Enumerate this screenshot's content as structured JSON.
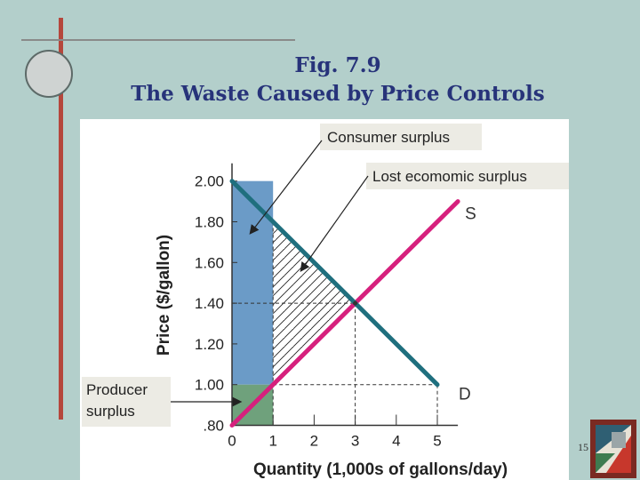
{
  "slide": {
    "title_line1": "Fig. 7.9",
    "title_line2": "The Waste Caused by Price Controls",
    "page_number": "15"
  },
  "chart_data": {
    "type": "line",
    "xlabel": "Quantity (1,000s of gallons/day)",
    "ylabel": "Price ($/gallon)",
    "xlim": [
      0,
      5.5
    ],
    "ylim": [
      0.8,
      2.0
    ],
    "x_ticks": [
      0,
      1,
      2,
      3,
      4,
      5
    ],
    "y_ticks": [
      0.8,
      1.0,
      1.2,
      1.4,
      1.6,
      1.8,
      2.0
    ],
    "x_tick_labels": [
      "0",
      "1",
      "2",
      "3",
      "4",
      "5"
    ],
    "y_tick_labels": [
      ".80",
      "1.00",
      "1.20",
      "1.40",
      "1.60",
      "1.80",
      "2.00"
    ],
    "series": [
      {
        "name": "S",
        "color": "#d6207d",
        "points": [
          [
            0,
            0.8
          ],
          [
            5.5,
            1.9
          ]
        ]
      },
      {
        "name": "D",
        "color": "#1f6f7e",
        "points": [
          [
            0,
            2.0
          ],
          [
            5,
            1.0
          ]
        ]
      }
    ],
    "equilibrium": {
      "x": 3,
      "y": 1.4
    },
    "price_ceiling": 1.0,
    "regions": {
      "consumer_surplus": {
        "color": "#6b9bc7",
        "x": [
          0,
          1
        ],
        "y": [
          1.0,
          2.0
        ]
      },
      "producer_surplus": {
        "color": "#6fa17c",
        "x": [
          0,
          1
        ],
        "y": [
          0.8,
          1.0
        ]
      },
      "lost_surplus": {
        "pattern": "hatched"
      }
    },
    "annotations": [
      {
        "label": "Consumer surplus"
      },
      {
        "label": "Lost ecomomic surplus"
      },
      {
        "label": "Producer surplus",
        "lines": [
          "Producer",
          "surplus"
        ]
      }
    ]
  }
}
